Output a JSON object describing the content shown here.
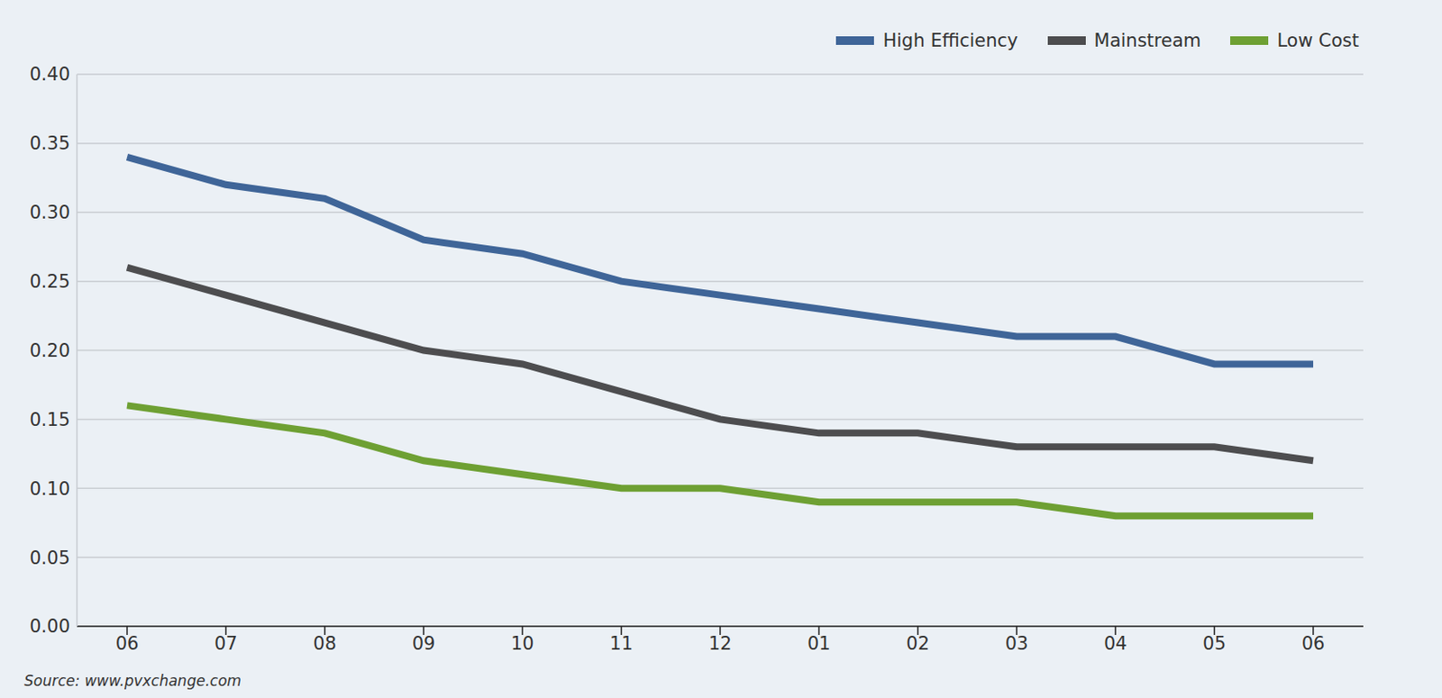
{
  "chart_data": {
    "type": "line",
    "source": "Source: www.pvxchange.com",
    "categories": [
      "06",
      "07",
      "08",
      "09",
      "10",
      "11",
      "12",
      "01",
      "02",
      "03",
      "04",
      "05",
      "06"
    ],
    "series": [
      {
        "name": "High Efficiency",
        "color": "#3f6598",
        "values": [
          0.34,
          0.32,
          0.31,
          0.28,
          0.27,
          0.25,
          0.24,
          0.23,
          0.22,
          0.21,
          0.21,
          0.19,
          0.19
        ]
      },
      {
        "name": "Mainstream",
        "color": "#4d4d4f",
        "values": [
          0.26,
          0.24,
          0.22,
          0.2,
          0.19,
          0.17,
          0.15,
          0.14,
          0.14,
          0.13,
          0.13,
          0.13,
          0.12
        ]
      },
      {
        "name": "Low Cost",
        "color": "#6ea033",
        "values": [
          0.16,
          0.15,
          0.14,
          0.12,
          0.11,
          0.1,
          0.1,
          0.09,
          0.09,
          0.09,
          0.08,
          0.08,
          0.08
        ]
      }
    ],
    "ylim": [
      0,
      0.4
    ],
    "yticks": [
      {
        "value": 0,
        "label": "0.00"
      },
      0.05,
      {
        "value": 0.1,
        "label": "0.10"
      },
      0.15,
      {
        "value": 0.2,
        "label": "0.20"
      },
      0.25,
      {
        "value": 0.3,
        "label": "0.30"
      },
      0.35,
      {
        "value": 0.4,
        "label": "0.40"
      }
    ],
    "grid": true,
    "legend": "top right"
  }
}
